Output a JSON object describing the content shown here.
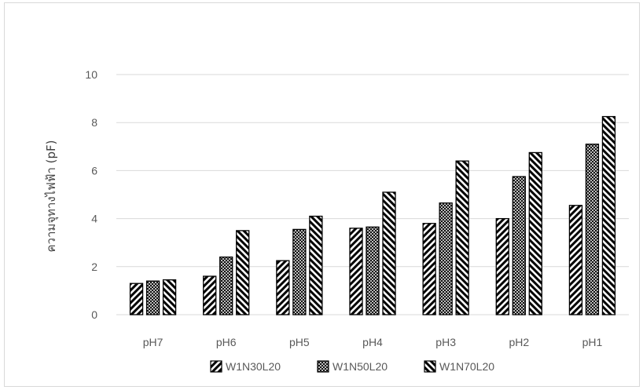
{
  "chart_data": {
    "type": "bar",
    "categories": [
      "pH7",
      "pH6",
      "pH5",
      "pH4",
      "pH3",
      "pH2",
      "pH1"
    ],
    "series": [
      {
        "name": "W1N30L20",
        "pattern": "wide-diagonal",
        "values": [
          1.3,
          1.6,
          2.25,
          3.6,
          3.8,
          4.0,
          4.55
        ]
      },
      {
        "name": "W1N50L20",
        "pattern": "dense-crosshatch",
        "values": [
          1.4,
          2.4,
          3.55,
          3.65,
          4.65,
          5.75,
          7.1
        ]
      },
      {
        "name": "W1N70L20",
        "pattern": "back-diagonal",
        "values": [
          1.45,
          3.5,
          4.1,
          5.1,
          6.4,
          6.75,
          8.25
        ]
      }
    ],
    "ylabel": "ความจุทางไฟฟ้า (pF)",
    "xlabel": "",
    "ylim": [
      0,
      10
    ],
    "yticks": [
      0,
      2,
      4,
      6,
      8,
      10
    ],
    "grid": true,
    "legend_position": "bottom",
    "colors": {
      "bar_stroke": "#000000",
      "grid": "#d9d9d9",
      "tick_text": "#595959"
    }
  }
}
